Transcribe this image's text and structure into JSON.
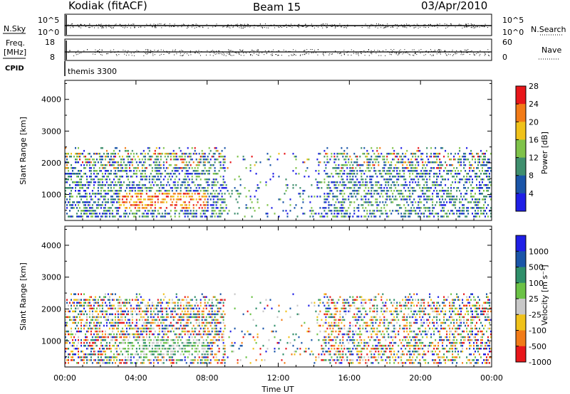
{
  "header": {
    "station": "Kodiak (fitACF)",
    "beam": "Beam 15",
    "date": "03/Apr/2010"
  },
  "strip_nsky": {
    "label": "N.Sky",
    "y_ticks_left": [
      "10^5",
      "10^0"
    ],
    "right_label": "N.Search",
    "y_ticks_right": [
      "10^5",
      "10^0"
    ]
  },
  "strip_freq": {
    "label_top": "Freq.",
    "label_bottom": "[MHz]",
    "y_ticks_left": [
      "18",
      "8"
    ],
    "right_label": "Nave",
    "y_ticks_right": [
      "60",
      "0"
    ],
    "cpid_label": "CPID",
    "cpid_value": "themis 3300"
  },
  "x_axis": {
    "label": "Time UT",
    "ticks": [
      "00:00",
      "04:00",
      "08:00",
      "12:00",
      "16:00",
      "20:00",
      "00:00"
    ]
  },
  "chart_data": [
    {
      "type": "heatmap",
      "name": "power",
      "ylabel": "Slant Range [km]",
      "yticks": [
        1000,
        2000,
        3000,
        4000
      ],
      "ylim": [
        180,
        4600
      ],
      "xlim_hours": [
        0,
        24
      ],
      "colorbar": {
        "label": "Power [dB]",
        "ticks": [
          "4",
          "8",
          "12",
          "16",
          "20",
          "24",
          "28"
        ],
        "colors": [
          "#1f1fe6",
          "#1a55a8",
          "#3f8f6e",
          "#7fc34a",
          "#f0c21a",
          "#f27b17",
          "#e8161a"
        ]
      }
    },
    {
      "type": "heatmap",
      "name": "velocity",
      "ylabel": "Slant Range [km]",
      "yticks": [
        1000,
        2000,
        3000,
        4000
      ],
      "ylim": [
        180,
        4600
      ],
      "xlim_hours": [
        0,
        24
      ],
      "colorbar": {
        "label": "Velocity [m s⁻¹]",
        "ticks": [
          "1000",
          "500",
          "100",
          "25",
          "-25",
          "-100",
          "-500",
          "-1000"
        ],
        "colors": [
          "#1f1fe6",
          "#1a55a8",
          "#2f8f6a",
          "#6bc246",
          "#c8c8c8",
          "#f0c21a",
          "#f27b17",
          "#e8161a"
        ]
      }
    }
  ]
}
